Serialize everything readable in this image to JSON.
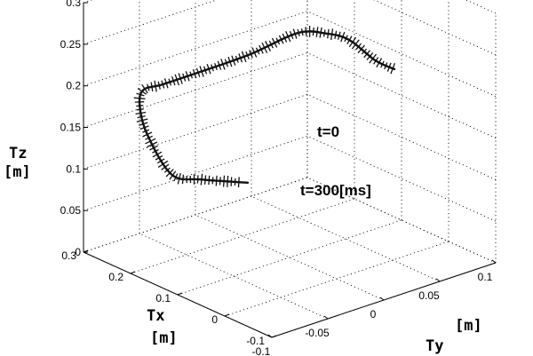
{
  "chart_data": {
    "type": "line3d",
    "title": "",
    "axes": {
      "x": {
        "label_name": "Tx",
        "label_unit": "[m]",
        "range": [
          -0.1,
          0.3
        ],
        "ticks": [
          -0.1,
          0,
          0.1,
          0.2,
          0.3
        ],
        "tick_labels": [
          "-0.1",
          "0",
          "0.1",
          "0.2",
          "0.3"
        ]
      },
      "y": {
        "label_name": "Ty",
        "label_unit": "[m]",
        "range": [
          -0.1,
          0.1
        ],
        "ticks": [
          -0.1,
          -0.05,
          0,
          0.05,
          0.1
        ],
        "tick_labels": [
          "-0.1",
          "-0.05",
          "0",
          "0.05",
          "0.1"
        ]
      },
      "z": {
        "label_name": "Tz",
        "label_unit": "[m]",
        "range": [
          0,
          0.3
        ],
        "ticks": [
          0,
          0.05,
          0.1,
          0.15,
          0.2,
          0.25,
          0.3
        ],
        "tick_labels": [
          "0",
          "0.05",
          "0.1",
          "0.15",
          "0.2",
          "0.25",
          "0.3"
        ]
      }
    },
    "grid": true,
    "annotations": [
      {
        "id": "start",
        "text": "t=0"
      },
      {
        "id": "end",
        "text": "t=300[ms]"
      }
    ],
    "series": [
      {
        "points": [
          [
            0.02,
            0.06,
            0.22
          ],
          [
            0.06,
            0.06,
            0.22
          ],
          [
            0.14,
            0.07,
            0.22
          ],
          [
            0.2,
            0.075,
            0.21
          ],
          [
            0.25,
            0.07,
            0.2
          ],
          [
            0.28,
            0.04,
            0.18
          ],
          [
            0.3,
            0.0,
            0.17
          ],
          [
            0.3,
            -0.03,
            0.17
          ],
          [
            0.28,
            -0.055,
            0.18
          ],
          [
            0.24,
            -0.075,
            0.18
          ],
          [
            0.2,
            -0.085,
            0.16
          ],
          [
            0.16,
            -0.08,
            0.12
          ],
          [
            0.12,
            -0.07,
            0.12
          ],
          [
            0.07,
            -0.05,
            0.12
          ]
        ]
      }
    ]
  }
}
